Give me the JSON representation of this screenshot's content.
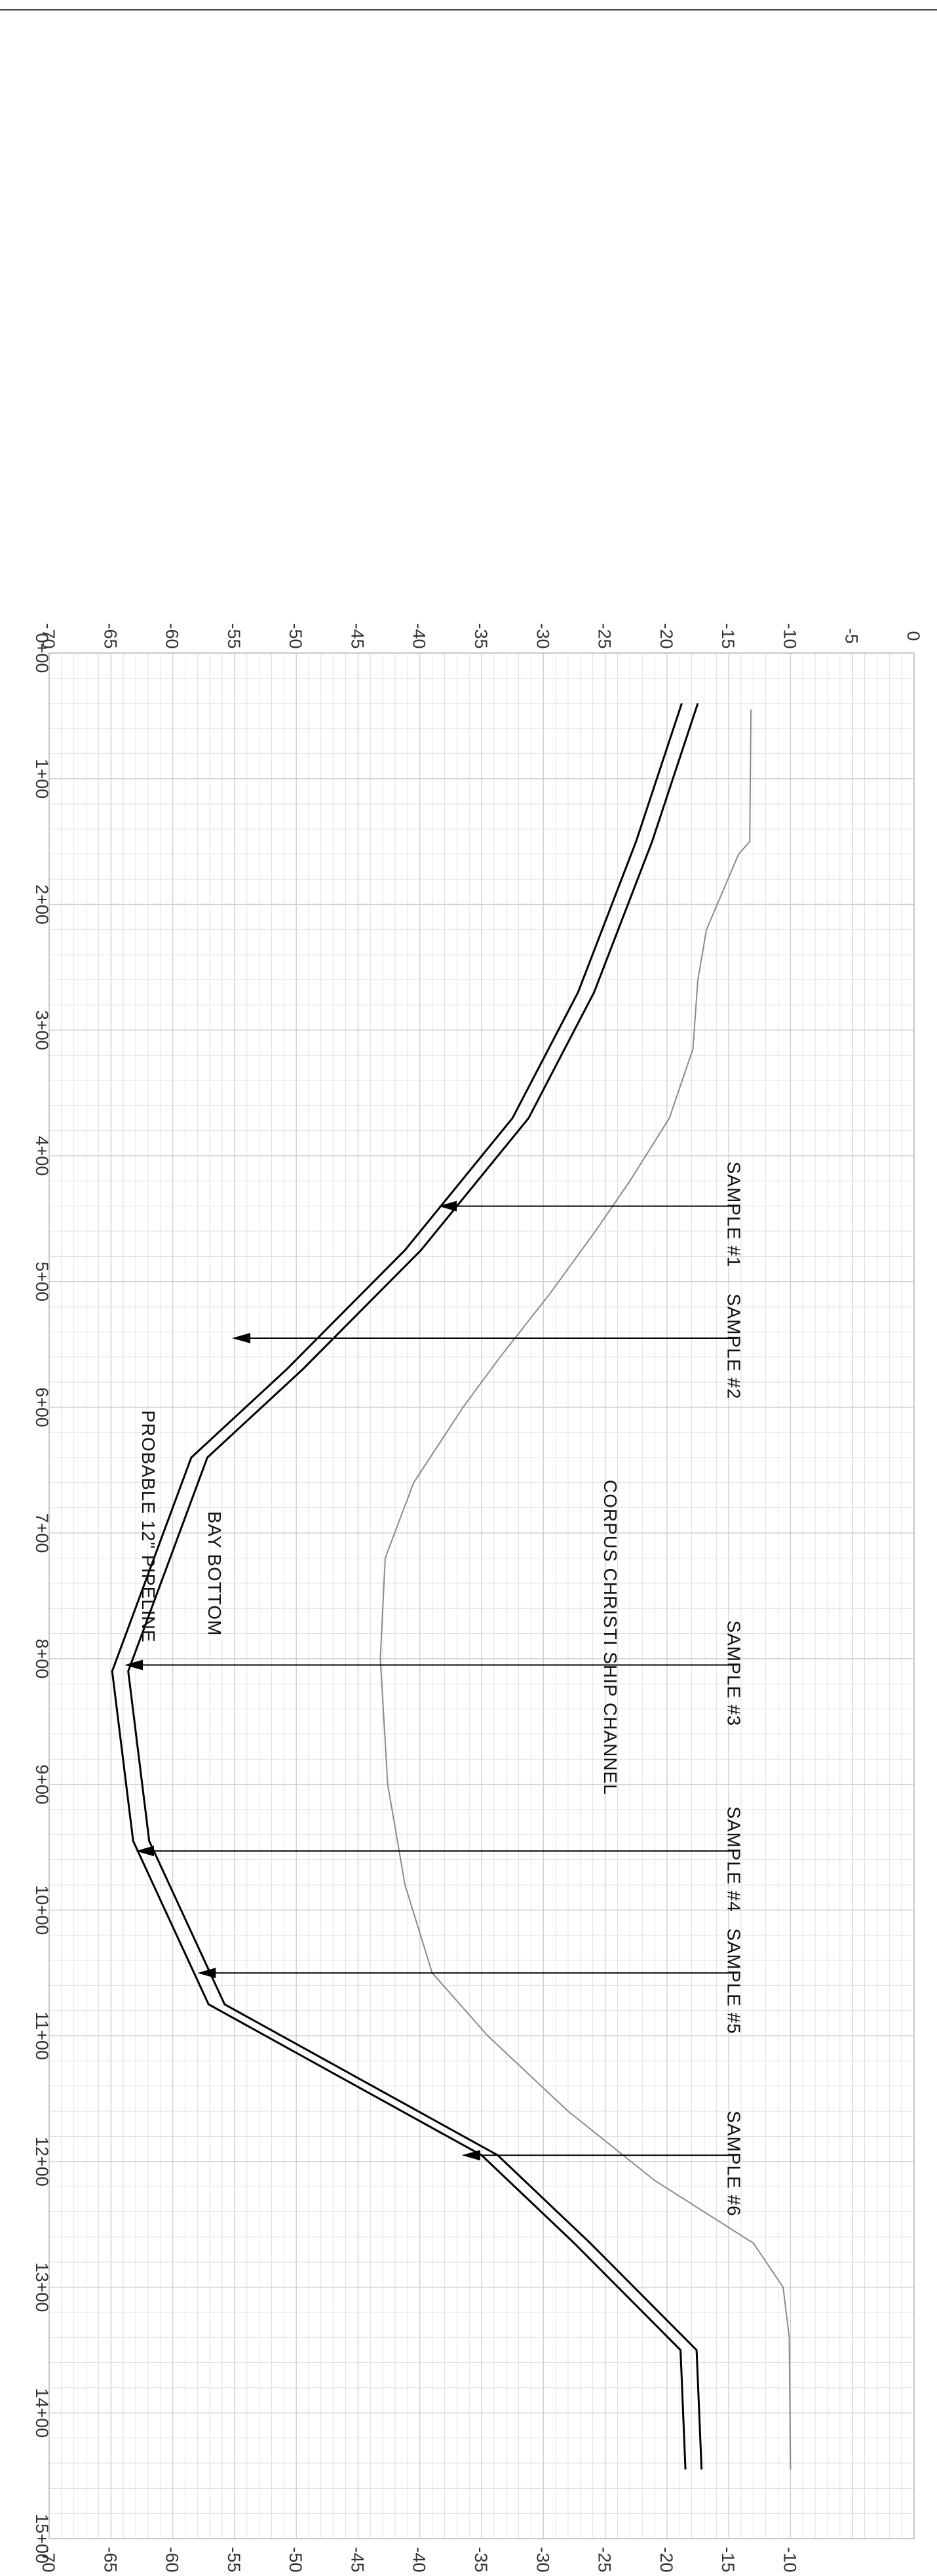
{
  "section": {
    "stations": [
      "0+00",
      "1+00",
      "2+00",
      "3+00",
      "4+00",
      "5+00",
      "6+00",
      "7+00",
      "8+00",
      "9+00",
      "10+00",
      "11+00",
      "12+00",
      "13+00",
      "14+00",
      "15+00"
    ],
    "station_range": [
      0,
      1500
    ],
    "elevations_left": [
      "0",
      "-5",
      "-10",
      "-15",
      "-20",
      "-25",
      "-30",
      "-35",
      "-40",
      "-45",
      "-50",
      "-55",
      "-60",
      "-65",
      "-70"
    ],
    "elevations_right": [
      "-10",
      "-15",
      "-20",
      "-25",
      "-30",
      "-35",
      "-40",
      "-45",
      "-50",
      "-55",
      "-60",
      "-65",
      "-70"
    ],
    "elevation_range": [
      -70,
      0
    ],
    "grid": true,
    "colors": {
      "grid": "#d9d9d9",
      "channel": "#000000",
      "bay_bottom": "#8a8a8a",
      "text": "#222222"
    }
  },
  "labels": {
    "channel_name": "CORPUS CHRISTI SHIP CHANNEL",
    "bay_bottom": "BAY BOTTOM",
    "pipeline": "PROBABLE 12\" PIPELINE"
  },
  "samples": [
    {
      "label": "SAMPLE #1",
      "station": 440,
      "elevation": -38.5
    },
    {
      "label": "SAMPLE #2",
      "station": 545,
      "elevation": -55.2
    },
    {
      "label": "SAMPLE #3",
      "station": 805,
      "elevation": -63.9
    },
    {
      "label": "SAMPLE #4",
      "station": 953,
      "elevation": -63.0
    },
    {
      "label": "SAMPLE #5",
      "station": 1050,
      "elevation": -58.0
    },
    {
      "label": "SAMPLE #6",
      "station": 1195,
      "elevation": -36.6
    }
  ],
  "chart_data": {
    "type": "line",
    "x": [
      0,
      1500
    ],
    "ylim": [
      -70,
      0
    ],
    "series": [
      {
        "name": "",
        "kind": "channel_outer",
        "points": [
          [
            40,
            -18.8
          ],
          [
            150,
            -22.5
          ],
          [
            270,
            -27.2
          ],
          [
            370,
            -32.5
          ],
          [
            475,
            -41.2
          ],
          [
            570,
            -50.8
          ],
          [
            640,
            -58.5
          ],
          [
            810,
            -64.9
          ],
          [
            945,
            -63.2
          ],
          [
            1075,
            -57.1
          ],
          [
            1195,
            -35.0
          ],
          [
            1265,
            -27.5
          ],
          [
            1350,
            -18.9
          ],
          [
            1445,
            -18.5
          ]
        ]
      },
      {
        "name": "",
        "kind": "channel_inner",
        "points": [
          [
            40,
            -17.5
          ],
          [
            150,
            -21.2
          ],
          [
            270,
            -25.9
          ],
          [
            370,
            -31.2
          ],
          [
            475,
            -39.9
          ],
          [
            570,
            -49.5
          ],
          [
            640,
            -57.2
          ],
          [
            810,
            -63.6
          ],
          [
            945,
            -61.9
          ],
          [
            1075,
            -55.8
          ],
          [
            1195,
            -33.7
          ],
          [
            1265,
            -26.2
          ],
          [
            1350,
            -17.6
          ],
          [
            1445,
            -17.2
          ]
        ]
      },
      {
        "name": "",
        "kind": "bay_bottom",
        "points": [
          [
            45,
            -13.2
          ],
          [
            150,
            -13.3
          ],
          [
            160,
            -14.2
          ],
          [
            220,
            -16.8
          ],
          [
            260,
            -17.5
          ],
          [
            315,
            -17.9
          ],
          [
            370,
            -19.8
          ],
          [
            420,
            -23.0
          ],
          [
            460,
            -25.8
          ],
          [
            510,
            -29.5
          ],
          [
            560,
            -33.5
          ],
          [
            600,
            -36.5
          ],
          [
            660,
            -40.5
          ],
          [
            720,
            -42.8
          ],
          [
            800,
            -43.2
          ],
          [
            900,
            -42.6
          ],
          [
            980,
            -41.2
          ],
          [
            1050,
            -39.0
          ],
          [
            1100,
            -34.5
          ],
          [
            1160,
            -28.0
          ],
          [
            1215,
            -21.0
          ],
          [
            1265,
            -13.0
          ],
          [
            1300,
            -10.6
          ],
          [
            1340,
            -10.1
          ],
          [
            1445,
            -10.0
          ]
        ]
      }
    ]
  }
}
